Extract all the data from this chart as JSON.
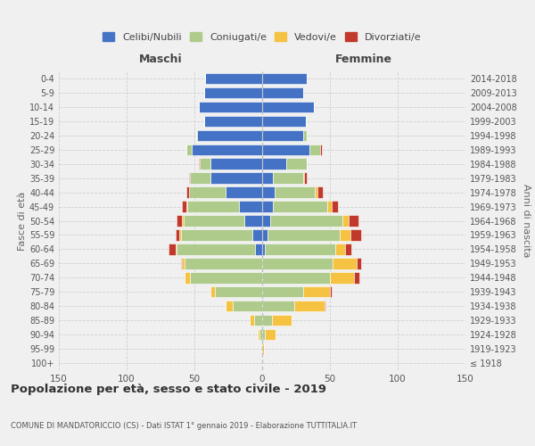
{
  "age_groups": [
    "100+",
    "95-99",
    "90-94",
    "85-89",
    "80-84",
    "75-79",
    "70-74",
    "65-69",
    "60-64",
    "55-59",
    "50-54",
    "45-49",
    "40-44",
    "35-39",
    "30-34",
    "25-29",
    "20-24",
    "15-19",
    "10-14",
    "5-9",
    "0-4"
  ],
  "birth_years": [
    "≤ 1918",
    "1919-1923",
    "1924-1928",
    "1929-1933",
    "1934-1938",
    "1939-1943",
    "1944-1948",
    "1949-1953",
    "1954-1958",
    "1959-1963",
    "1964-1968",
    "1969-1973",
    "1974-1978",
    "1979-1983",
    "1984-1988",
    "1989-1993",
    "1994-1998",
    "1999-2003",
    "2004-2008",
    "2009-2013",
    "2014-2018"
  ],
  "males": {
    "celibi": [
      0,
      0,
      0,
      0,
      0,
      0,
      0,
      0,
      5,
      7,
      13,
      17,
      27,
      38,
      38,
      52,
      48,
      43,
      47,
      43,
      42
    ],
    "coniugati": [
      0,
      0,
      2,
      6,
      22,
      35,
      53,
      57,
      58,
      53,
      45,
      38,
      27,
      15,
      8,
      4,
      1,
      0,
      0,
      0,
      0
    ],
    "vedovi": [
      0,
      0,
      1,
      3,
      5,
      3,
      4,
      2,
      1,
      1,
      1,
      1,
      0,
      0,
      0,
      0,
      0,
      0,
      0,
      0,
      0
    ],
    "divorziati": [
      0,
      0,
      0,
      0,
      0,
      0,
      0,
      1,
      5,
      3,
      4,
      3,
      2,
      1,
      1,
      0,
      0,
      0,
      0,
      0,
      0
    ]
  },
  "females": {
    "nubili": [
      0,
      0,
      0,
      0,
      0,
      0,
      0,
      0,
      2,
      4,
      6,
      8,
      9,
      8,
      18,
      35,
      30,
      32,
      38,
      30,
      33
    ],
    "coniugate": [
      0,
      0,
      2,
      7,
      24,
      30,
      50,
      52,
      52,
      53,
      53,
      40,
      30,
      22,
      15,
      8,
      3,
      0,
      0,
      0,
      0
    ],
    "vedove": [
      0,
      1,
      8,
      15,
      22,
      20,
      18,
      18,
      7,
      8,
      5,
      3,
      2,
      1,
      0,
      0,
      0,
      0,
      0,
      0,
      0
    ],
    "divorziate": [
      0,
      0,
      0,
      0,
      1,
      1,
      4,
      3,
      5,
      8,
      7,
      5,
      4,
      2,
      0,
      1,
      0,
      0,
      0,
      0,
      0
    ]
  },
  "colors": {
    "celibi_nubili": "#4472C4",
    "coniugati": "#AECB8B",
    "vedovi": "#F5C242",
    "divorziati": "#C0392B"
  },
  "title": "Popolazione per età, sesso e stato civile - 2019",
  "subtitle": "COMUNE DI MANDATORICCIO (CS) - Dati ISTAT 1° gennaio 2019 - Elaborazione TUTTITALIA.IT",
  "xlabel_left": "Maschi",
  "xlabel_right": "Femmine",
  "ylabel_left": "Fasce di età",
  "ylabel_right": "Anni di nascita",
  "legend_labels": [
    "Celibi/Nubili",
    "Coniugati/e",
    "Vedovi/e",
    "Divorziati/e"
  ],
  "xlim": 150,
  "background_color": "#f0f0f0",
  "grid_color": "#cccccc"
}
